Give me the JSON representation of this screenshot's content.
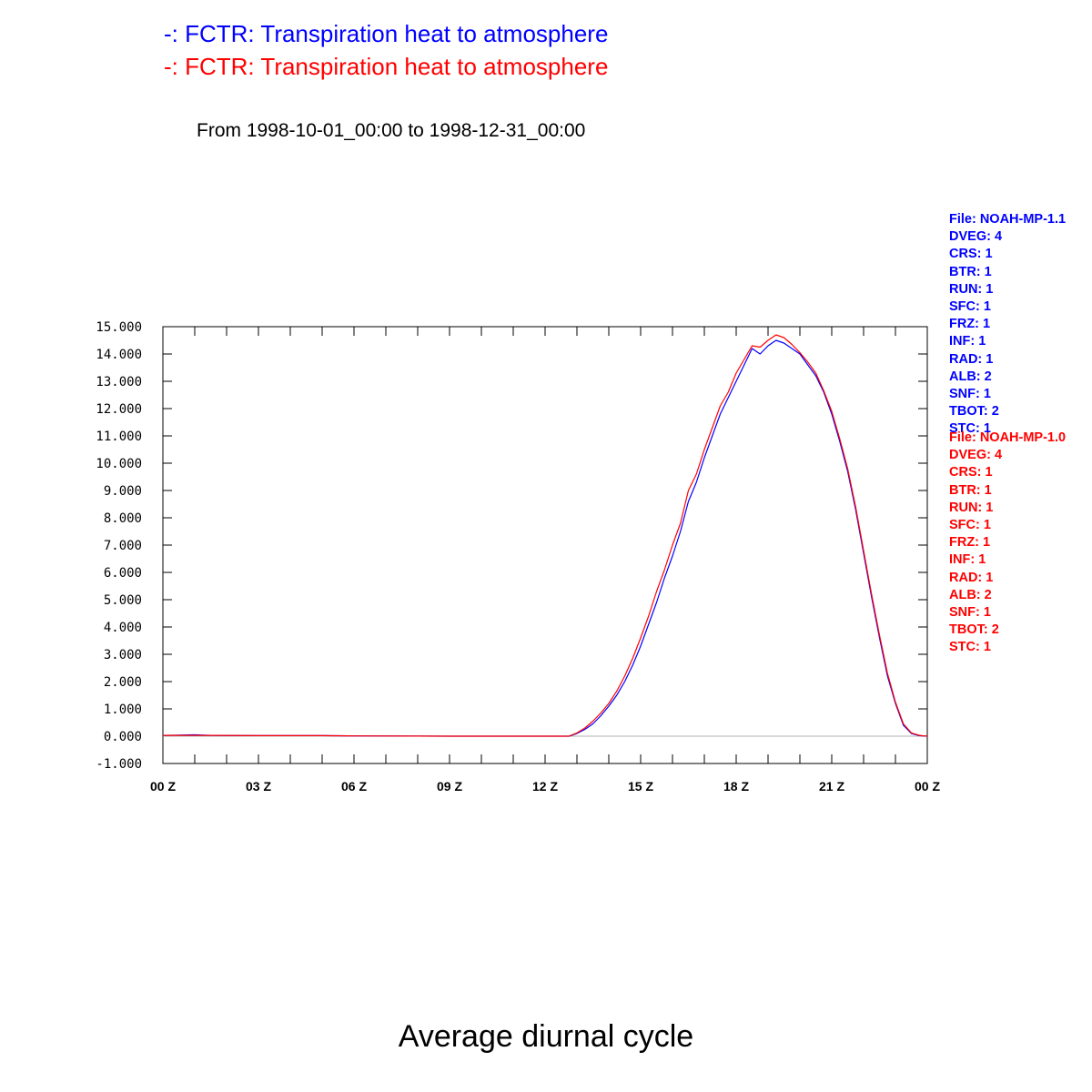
{
  "legend": [
    {
      "text": "-: FCTR: Transpiration heat to atmosphere",
      "color": "#0000ff"
    },
    {
      "text": "-: FCTR: Transpiration heat to atmosphere",
      "color": "#ff0000"
    }
  ],
  "subtitle": "From 1998-10-01_00:00 to 1998-12-31_00:00",
  "caption": "Average diurnal cycle",
  "info_blue": [
    "File: NOAH-MP-1.1",
    "DVEG: 4",
    "CRS: 1",
    "BTR: 1",
    "RUN: 1",
    "SFC: 1",
    "FRZ: 1",
    "INF: 1",
    "RAD: 1",
    "ALB: 2",
    "SNF: 1",
    "TBOT: 2",
    "STC: 1"
  ],
  "info_red": [
    "File: NOAH-MP-1.0",
    "DVEG: 4",
    "CRS: 1",
    "BTR: 1",
    "RUN: 1",
    "SFC: 1",
    "FRZ: 1",
    "INF: 1",
    "RAD: 1",
    "ALB: 2",
    "SNF: 1",
    "TBOT: 2",
    "STC: 1"
  ],
  "colors": {
    "blue": "#0000ff",
    "red": "#ff0000",
    "zero_line": "#b0b0b0"
  },
  "chart_data": {
    "type": "line",
    "xlim": [
      0,
      24
    ],
    "ylim": [
      -1,
      15
    ],
    "xticks": [
      0,
      3,
      6,
      9,
      12,
      15,
      18,
      21,
      24
    ],
    "xtick_labels": [
      "00 Z",
      "03 Z",
      "06 Z",
      "09 Z",
      "12 Z",
      "15 Z",
      "18 Z",
      "21 Z",
      "00 Z"
    ],
    "yticks": [
      -1,
      0,
      1,
      2,
      3,
      4,
      5,
      6,
      7,
      8,
      9,
      10,
      11,
      12,
      13,
      14,
      15
    ],
    "ytick_labels": [
      "-1.000",
      "0.000",
      "1.000",
      "2.000",
      "3.000",
      "4.000",
      "5.000",
      "6.000",
      "7.000",
      "8.000",
      "9.000",
      "10.000",
      "11.000",
      "12.000",
      "13.000",
      "14.000",
      "15.000"
    ],
    "zero_line": 0,
    "series": [
      {
        "color": "#0000ff",
        "x": [
          0,
          0.5,
          1.0,
          1.5,
          3,
          5,
          6,
          9,
          12,
          12.75,
          13.0,
          13.25,
          13.5,
          13.75,
          14.0,
          14.25,
          14.5,
          14.75,
          15.0,
          15.25,
          15.5,
          15.75,
          16.0,
          16.25,
          16.5,
          16.75,
          17.0,
          17.25,
          17.5,
          17.75,
          18.0,
          18.25,
          18.5,
          18.75,
          19.0,
          19.25,
          19.5,
          19.75,
          20.0,
          20.25,
          20.5,
          20.75,
          21.0,
          21.25,
          21.5,
          21.75,
          22.0,
          22.25,
          22.5,
          22.75,
          23.0,
          23.25,
          23.5,
          23.75,
          24.0
        ],
        "y": [
          0.03,
          0.04,
          0.05,
          0.03,
          0.02,
          0.02,
          0.01,
          0.0,
          0.0,
          0.0,
          0.1,
          0.25,
          0.45,
          0.75,
          1.1,
          1.5,
          2.0,
          2.6,
          3.3,
          4.1,
          4.9,
          5.8,
          6.6,
          7.5,
          8.6,
          9.3,
          10.2,
          11.0,
          11.8,
          12.4,
          13.0,
          13.6,
          14.2,
          14.0,
          14.3,
          14.5,
          14.4,
          14.2,
          14.0,
          13.6,
          13.2,
          12.6,
          11.8,
          10.8,
          9.7,
          8.3,
          6.7,
          5.1,
          3.6,
          2.2,
          1.2,
          0.4,
          0.1,
          0.02,
          0.0
        ]
      },
      {
        "color": "#ff0000",
        "x": [
          0,
          0.5,
          1.0,
          1.5,
          3,
          5,
          6,
          9,
          12,
          12.75,
          13.0,
          13.25,
          13.5,
          13.75,
          14.0,
          14.25,
          14.5,
          14.75,
          15.0,
          15.25,
          15.5,
          15.75,
          16.0,
          16.25,
          16.5,
          16.75,
          17.0,
          17.25,
          17.5,
          17.75,
          18.0,
          18.25,
          18.5,
          18.75,
          19.0,
          19.25,
          19.5,
          19.75,
          20.0,
          20.25,
          20.5,
          20.75,
          21.0,
          21.25,
          21.5,
          21.75,
          22.0,
          22.25,
          22.5,
          22.75,
          23.0,
          23.25,
          23.5,
          23.75,
          24.0
        ],
        "y": [
          0.03,
          0.03,
          0.03,
          0.03,
          0.02,
          0.02,
          0.01,
          0.0,
          0.0,
          0.0,
          0.12,
          0.3,
          0.55,
          0.85,
          1.2,
          1.65,
          2.2,
          2.85,
          3.6,
          4.4,
          5.3,
          6.1,
          7.0,
          7.8,
          9.0,
          9.6,
          10.5,
          11.3,
          12.1,
          12.6,
          13.3,
          13.8,
          14.3,
          14.25,
          14.5,
          14.7,
          14.6,
          14.35,
          14.05,
          13.7,
          13.3,
          12.65,
          11.9,
          10.9,
          9.8,
          8.4,
          6.8,
          5.2,
          3.7,
          2.3,
          1.25,
          0.45,
          0.12,
          0.03,
          0.0
        ]
      }
    ]
  }
}
